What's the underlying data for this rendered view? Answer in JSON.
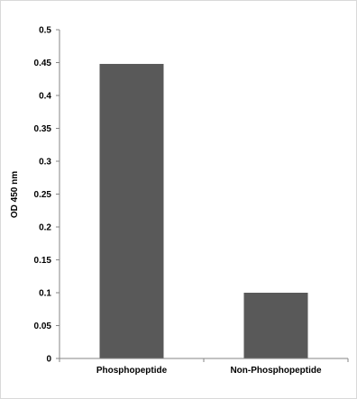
{
  "chart_data": {
    "type": "bar",
    "title": "",
    "xlabel": "",
    "ylabel": "OD 450 nm",
    "ylim": [
      0,
      0.5
    ],
    "yticks": [
      0,
      0.05,
      0.1,
      0.15,
      0.2,
      0.25,
      0.3,
      0.35,
      0.4,
      0.45,
      0.5
    ],
    "ytick_labels": [
      "0",
      "0.05",
      "0.1",
      "0.15",
      "0.2",
      "0.25",
      "0.3",
      "0.35",
      "0.4",
      "0.45",
      "0.5"
    ],
    "categories": [
      "Phosphopeptide",
      "Non-Phosphopeptide"
    ],
    "values": [
      0.448,
      0.1
    ],
    "bar_color": "#595959",
    "grid": false,
    "legend": false
  }
}
